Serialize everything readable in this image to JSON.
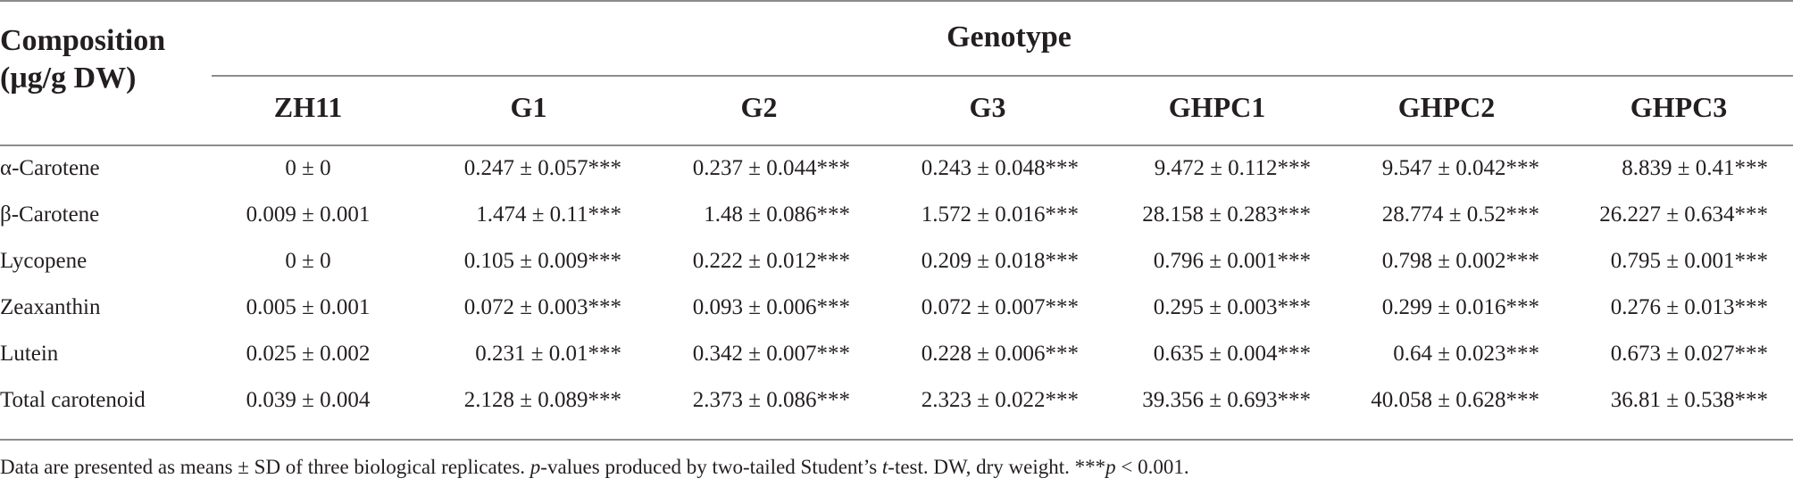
{
  "header": {
    "composition_line1": "Composition",
    "composition_line2": "(μg/g DW)",
    "genotype": "Genotype"
  },
  "columns": [
    "ZH11",
    "G1",
    "G2",
    "G3",
    "GHPC1",
    "GHPC2",
    "GHPC3"
  ],
  "rows": [
    {
      "name": "α-Carotene",
      "values": [
        "0 ± 0",
        "0.247 ± 0.057***",
        "0.237 ± 0.044***",
        "0.243 ± 0.048***",
        "9.472 ± 0.112***",
        "9.547 ± 0.042***",
        "8.839 ± 0.41***"
      ]
    },
    {
      "name": "β-Carotene",
      "values": [
        "0.009 ± 0.001",
        "1.474 ± 0.11***",
        "1.48 ± 0.086***",
        "1.572 ± 0.016***",
        "28.158 ± 0.283***",
        "28.774 ± 0.52***",
        "26.227 ± 0.634***"
      ]
    },
    {
      "name": "Lycopene",
      "values": [
        "0 ± 0",
        "0.105 ± 0.009***",
        "0.222 ± 0.012***",
        "0.209 ± 0.018***",
        "0.796 ± 0.001***",
        "0.798 ± 0.002***",
        "0.795 ± 0.001***"
      ]
    },
    {
      "name": "Zeaxanthin",
      "values": [
        "0.005 ± 0.001",
        "0.072 ± 0.003***",
        "0.093 ± 0.006***",
        "0.072 ± 0.007***",
        "0.295 ± 0.003***",
        "0.299 ± 0.016***",
        "0.276 ± 0.013***"
      ]
    },
    {
      "name": "Lutein",
      "values": [
        "0.025 ± 0.002",
        "0.231 ± 0.01***",
        "0.342 ± 0.007***",
        "0.228 ± 0.006***",
        "0.635 ± 0.004***",
        "0.64 ± 0.023***",
        "0.673 ± 0.027***"
      ]
    },
    {
      "name": "Total carotenoid",
      "values": [
        "0.039 ± 0.004",
        "2.128 ± 0.089***",
        "2.373 ± 0.086***",
        "2.323 ± 0.022***",
        "39.356 ± 0.693***",
        "40.058 ± 0.628***",
        "36.81 ± 0.538***"
      ]
    }
  ],
  "footnote": {
    "part1": "Data are presented as means ± SD of three biological replicates. ",
    "p_italic": "p",
    "part2": "-values produced by two-tailed Student’s ",
    "t_italic": "t",
    "part3": "-test. DW, dry weight. ***",
    "p2_italic": "p",
    "part4": " < 0.001."
  }
}
